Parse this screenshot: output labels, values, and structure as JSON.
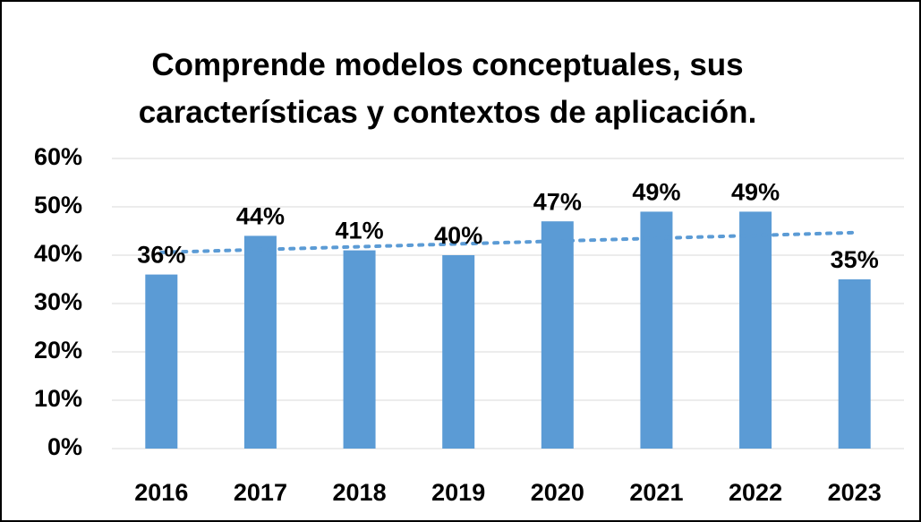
{
  "chart_data": {
    "type": "bar",
    "title": "Comprende modelos conceptuales, sus características y contextos de aplicación.",
    "categories": [
      "2016",
      "2017",
      "2018",
      "2019",
      "2020",
      "2021",
      "2022",
      "2023"
    ],
    "values": [
      36,
      44,
      41,
      40,
      47,
      49,
      49,
      35
    ],
    "value_labels": [
      "36%",
      "44%",
      "41%",
      "40%",
      "47%",
      "49%",
      "49%",
      "35%"
    ],
    "color": "#5b9bd5",
    "ylim": [
      0,
      60
    ],
    "yticks": [
      {
        "value": 0,
        "label": "0%"
      },
      {
        "value": 10,
        "label": "10%"
      },
      {
        "value": 20,
        "label": "20%"
      },
      {
        "value": 30,
        "label": "30%"
      },
      {
        "value": 40,
        "label": "40%"
      },
      {
        "value": 50,
        "label": "50%"
      },
      {
        "value": 60,
        "label": "60%"
      }
    ],
    "grid": true,
    "trendline": "linear"
  }
}
